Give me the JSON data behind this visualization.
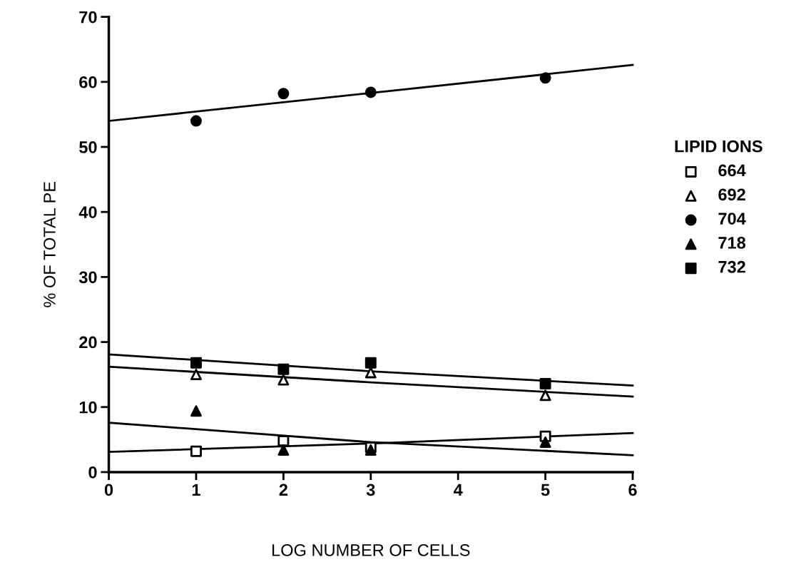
{
  "chart_data": {
    "type": "scatter",
    "xlabel": "LOG NUMBER OF CELLS",
    "ylabel": "% OF TOTAL PE",
    "legend_title": "LIPID IONS",
    "legend": "right",
    "grid": false,
    "xlim": [
      0,
      6
    ],
    "xticks": [
      0,
      1,
      2,
      3,
      4,
      5,
      6
    ],
    "ylim": [
      0,
      70
    ],
    "yticks": [
      0,
      10,
      20,
      30,
      40,
      50,
      60,
      70
    ],
    "x": [
      1,
      2,
      3,
      5
    ],
    "series": [
      {
        "name": "664",
        "color": "#ffffff",
        "marker": "square",
        "values": [
          3.2,
          4.8,
          3.8,
          5.5
        ]
      },
      {
        "name": "692",
        "color": "#ffffff",
        "marker": "triangle",
        "values": [
          15,
          14.2,
          15.3,
          11.8
        ]
      },
      {
        "name": "704",
        "color": "#000000",
        "marker": "circle",
        "values": [
          54,
          58.2,
          58.4,
          60.6
        ]
      },
      {
        "name": "718",
        "color": "#000000",
        "marker": "triangle",
        "values": [
          9.4,
          3.4,
          3.4,
          4.6
        ]
      },
      {
        "name": "732",
        "color": "#000000",
        "marker": "square",
        "values": [
          16.8,
          15.8,
          16.8,
          13.6
        ]
      },
      {
        "type": "line",
        "color": "#000000",
        "marker": "none",
        "line_style": "solid",
        "x": [
          0,
          3,
          6
        ],
        "values": [
          54,
          58.3,
          62.6
        ]
      },
      {
        "type": "line",
        "color": "#000000",
        "marker": "none",
        "line_style": "solid",
        "x": [
          0,
          3,
          6
        ],
        "values": [
          18.1,
          15.5,
          13.3
        ]
      },
      {
        "type": "line",
        "color": "#000000",
        "marker": "none",
        "line_style": "solid",
        "x": [
          0,
          3,
          6
        ],
        "values": [
          16.2,
          13.8,
          11.6
        ]
      },
      {
        "type": "line",
        "color": "#000000",
        "marker": "none",
        "line_style": "solid",
        "x": [
          0,
          3,
          6
        ],
        "values": [
          7.6,
          4.6,
          2.6
        ]
      },
      {
        "type": "line",
        "color": "#000000",
        "marker": "none",
        "line_style": "solid",
        "x": [
          0,
          3,
          6
        ],
        "values": [
          3.1,
          4.4,
          6.0
        ]
      }
    ]
  }
}
